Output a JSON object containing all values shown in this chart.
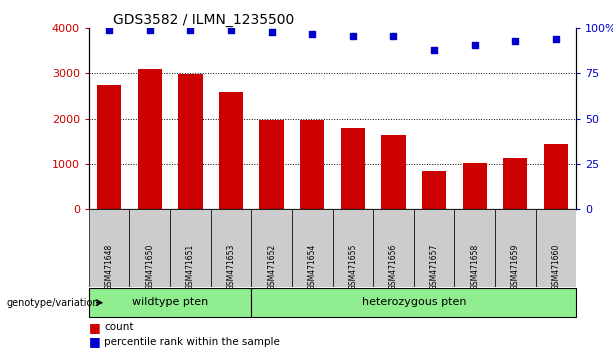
{
  "title": "GDS3582 / ILMN_1235500",
  "samples": [
    "GSM471648",
    "GSM471650",
    "GSM471651",
    "GSM471653",
    "GSM471652",
    "GSM471654",
    "GSM471655",
    "GSM471656",
    "GSM471657",
    "GSM471658",
    "GSM471659",
    "GSM471660"
  ],
  "counts": [
    2750,
    3100,
    2980,
    2600,
    1960,
    1960,
    1790,
    1640,
    830,
    1020,
    1120,
    1430
  ],
  "percentiles": [
    99,
    99,
    99,
    99,
    98,
    97,
    96,
    96,
    88,
    91,
    93,
    94
  ],
  "bar_color": "#cc0000",
  "dot_color": "#0000cc",
  "wildtype_label": "wildtype pten",
  "heterozygous_label": "heterozygous pten",
  "wildtype_count": 4,
  "heterozygous_count": 8,
  "ylim_left": [
    0,
    4000
  ],
  "ylim_right": [
    0,
    100
  ],
  "yticks_left": [
    0,
    1000,
    2000,
    3000,
    4000
  ],
  "ytick_labels_left": [
    "0",
    "1000",
    "2000",
    "3000",
    "4000"
  ],
  "yticks_right": [
    0,
    25,
    50,
    75,
    100
  ],
  "ytick_labels_right": [
    "0",
    "25",
    "50",
    "75",
    "100%"
  ],
  "grid_color": "#000000",
  "bar_color_red": "#cc0000",
  "dot_color_blue": "#0000cc",
  "wildtype_bg": "#90ee90",
  "heterozygous_bg": "#90ee90",
  "sample_bg": "#cccccc",
  "legend_count_label": "count",
  "legend_percentile_label": "percentile rank within the sample",
  "genotype_label": "genotype/variation"
}
